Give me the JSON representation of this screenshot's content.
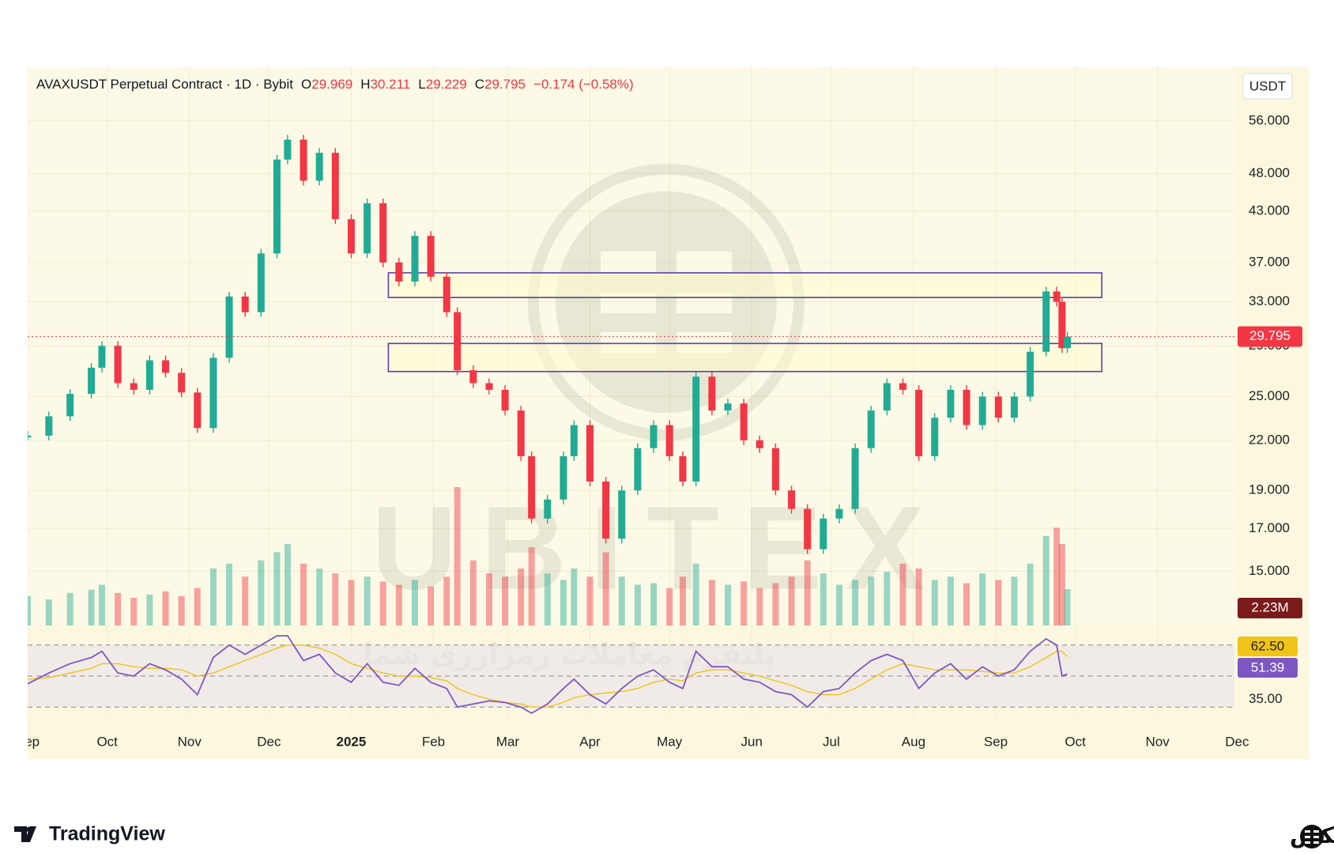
{
  "header": {
    "symbol": "AVAXUSDT Perpetual Contract · 1D · Bybit",
    "ohlc": [
      {
        "label": "O",
        "value": "29.969"
      },
      {
        "label": "H",
        "value": "30.211"
      },
      {
        "label": "L",
        "value": "29.229"
      },
      {
        "label": "C",
        "value": "29.795"
      }
    ],
    "change": "−0.174 (−0.58%)"
  },
  "chart_data": {
    "type": "candlestick",
    "currency": "USDT",
    "log_scale": true,
    "grid": true,
    "up_color": "#22ab94",
    "down_color": "#f23645",
    "x": [
      0,
      8,
      16,
      24,
      28,
      34,
      40,
      46,
      52,
      58,
      64,
      70,
      76,
      82,
      88,
      94,
      98,
      104,
      110,
      116,
      122,
      128,
      134,
      140,
      146,
      152,
      158,
      162,
      168,
      174,
      180,
      186,
      190,
      196,
      202,
      206,
      212,
      218,
      224,
      230,
      236,
      242,
      247,
      252,
      258,
      264,
      270,
      276,
      282,
      288,
      294,
      300,
      306,
      312,
      318,
      324,
      330,
      336,
      342,
      348,
      354,
      360,
      366,
      372,
      378,
      384,
      388,
      390,
      392
    ],
    "close": [
      22.3,
      23.6,
      25.2,
      27.2,
      29.0,
      26.0,
      25.5,
      27.8,
      26.8,
      25.3,
      22.8,
      28.0,
      33.5,
      32.0,
      38.0,
      50.0,
      53.0,
      47.0,
      51.0,
      42.0,
      38.0,
      44.0,
      37.0,
      35.0,
      40.0,
      35.5,
      32.0,
      27.0,
      26.0,
      25.5,
      24.0,
      21.0,
      17.5,
      18.5,
      21.0,
      23.0,
      19.5,
      16.5,
      19.0,
      21.5,
      23.0,
      21.0,
      19.5,
      26.5,
      24.0,
      24.5,
      22.0,
      21.5,
      19.0,
      18.0,
      16.0,
      17.5,
      18.0,
      21.5,
      24.0,
      26.0,
      25.5,
      21.0,
      23.5,
      25.5,
      23.0,
      25.0,
      23.5,
      25.0,
      28.5,
      34.0,
      33.0,
      28.8,
      29.795
    ],
    "volume": [
      1.8,
      1.6,
      2.0,
      2.2,
      2.5,
      2.0,
      1.7,
      1.9,
      2.1,
      1.8,
      2.3,
      3.5,
      3.8,
      3.0,
      4.0,
      4.5,
      5.0,
      3.8,
      3.5,
      3.2,
      2.8,
      3.0,
      2.7,
      2.5,
      2.8,
      2.4,
      3.0,
      8.5,
      4.0,
      3.2,
      3.0,
      3.5,
      4.8,
      3.2,
      2.8,
      3.5,
      3.0,
      4.5,
      3.0,
      2.5,
      2.6,
      2.3,
      3.0,
      3.8,
      2.8,
      2.5,
      2.7,
      2.3,
      2.6,
      3.0,
      4.0,
      3.2,
      2.5,
      2.8,
      3.0,
      3.3,
      3.8,
      3.5,
      2.8,
      3.0,
      2.6,
      3.2,
      2.8,
      3.0,
      3.8,
      5.5,
      6.0,
      5.0,
      2.23
    ],
    "volume_label": "2.23M",
    "xlim": [
      0,
      455
    ],
    "xticks": [
      {
        "value": 0,
        "label": "Sep"
      },
      {
        "value": 30,
        "label": "Oct"
      },
      {
        "value": 61,
        "label": "Nov"
      },
      {
        "value": 91,
        "label": "Dec"
      },
      {
        "value": 122,
        "label": "2025"
      },
      {
        "value": 153,
        "label": "Feb"
      },
      {
        "value": 181,
        "label": "Mar"
      },
      {
        "value": 212,
        "label": "Apr"
      },
      {
        "value": 242,
        "label": "May"
      },
      {
        "value": 273,
        "label": "Jun"
      },
      {
        "value": 303,
        "label": "Jul"
      },
      {
        "value": 334,
        "label": "Aug"
      },
      {
        "value": 365,
        "label": "Sep"
      },
      {
        "value": 395,
        "label": "Oct"
      },
      {
        "value": 426,
        "label": "Nov"
      },
      {
        "value": 456,
        "label": "Dec"
      }
    ],
    "ylim": [
      12.8,
      65.2
    ],
    "yticks": [
      {
        "value": 56,
        "label": "56.000"
      },
      {
        "value": 48,
        "label": "48.000"
      },
      {
        "value": 43,
        "label": "43.000"
      },
      {
        "value": 37,
        "label": "37.000"
      },
      {
        "value": 33,
        "label": "33.000"
      },
      {
        "value": 29,
        "label": "29.000"
      },
      {
        "value": 25,
        "label": "25.000"
      },
      {
        "value": 22,
        "label": "22.000"
      },
      {
        "value": 19,
        "label": "19.000"
      },
      {
        "value": 17,
        "label": "17.000"
      },
      {
        "value": 15,
        "label": "15.000"
      }
    ],
    "zone_color": "#5b3ea8",
    "zones": [
      {
        "x": [
          136,
          405
        ],
        "y": [
          33.4,
          35.9
        ]
      },
      {
        "x": [
          136,
          405
        ],
        "y": [
          26.9,
          29.2
        ]
      }
    ],
    "rsi": [
      45,
      52,
      58,
      62,
      66,
      52,
      50,
      58,
      54,
      48,
      38,
      62,
      70,
      64,
      70,
      76,
      76,
      60,
      64,
      52,
      46,
      58,
      46,
      44,
      55,
      46,
      42,
      30,
      32,
      34,
      33,
      30,
      26,
      32,
      42,
      48,
      38,
      32,
      42,
      50,
      54,
      46,
      42,
      66,
      56,
      56,
      48,
      46,
      40,
      38,
      30,
      40,
      42,
      52,
      60,
      64,
      60,
      42,
      52,
      58,
      48,
      56,
      50,
      54,
      66,
      74,
      70,
      50,
      51.39
    ],
    "rsi_ma": [
      48,
      49,
      52,
      55,
      58,
      58,
      56,
      55,
      55,
      54,
      50,
      52,
      56,
      60,
      64,
      68,
      70,
      70,
      68,
      64,
      58,
      55,
      52,
      50,
      50,
      49,
      47,
      42,
      38,
      35,
      33,
      32,
      30,
      30,
      33,
      36,
      38,
      39,
      40,
      42,
      46,
      48,
      47,
      52,
      54,
      54,
      52,
      50,
      47,
      44,
      40,
      38,
      38,
      42,
      48,
      54,
      58,
      56,
      54,
      54,
      54,
      53,
      52,
      52,
      56,
      62,
      66,
      66,
      62.5
    ],
    "rsi_ma_label": "62.50",
    "rsi_color": "#7e57c2",
    "rsi_ma_color": "#f0c419",
    "rsi_ylim": [
      25,
      76
    ],
    "rsi_yticks": [
      {
        "value": 35,
        "label": "35.00"
      }
    ],
    "rsi_bands": [
      30,
      50,
      70
    ]
  },
  "watermark": {
    "brand": "UBITEX",
    "slogan": "پلتفرم معاملات رمزارزی شما"
  },
  "footer": {
    "left": "TradingView",
    "right": "یوبیتکس"
  }
}
